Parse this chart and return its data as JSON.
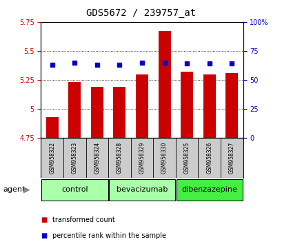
{
  "title": "GDS5672 / 239757_at",
  "samples": [
    "GSM958322",
    "GSM958323",
    "GSM958324",
    "GSM958328",
    "GSM958329",
    "GSM958330",
    "GSM958325",
    "GSM958326",
    "GSM958327"
  ],
  "red_values": [
    4.93,
    5.23,
    5.19,
    5.19,
    5.3,
    5.67,
    5.32,
    5.3,
    5.31
  ],
  "blue_values": [
    63,
    65,
    63,
    63,
    65,
    65,
    64,
    64,
    64
  ],
  "ylim_left": [
    4.75,
    5.75
  ],
  "ylim_right": [
    0,
    100
  ],
  "yticks_left": [
    4.75,
    5.0,
    5.25,
    5.5,
    5.75
  ],
  "yticks_right": [
    0,
    25,
    50,
    75,
    100
  ],
  "ytick_labels_right": [
    "0",
    "25",
    "50",
    "75",
    "100%"
  ],
  "grid_lines": [
    5.0,
    5.25,
    5.5
  ],
  "groups": [
    {
      "label": "control",
      "start": 0,
      "end": 2,
      "color": "#aaffaa"
    },
    {
      "label": "bevacizumab",
      "start": 3,
      "end": 5,
      "color": "#aaffaa"
    },
    {
      "label": "dibenzazepine",
      "start": 6,
      "end": 8,
      "color": "#44ee44"
    }
  ],
  "bar_color": "#cc0000",
  "dot_color": "#0000cc",
  "bar_bottom": 4.75,
  "bar_width": 0.55,
  "agent_label": "agent",
  "legend_items": [
    {
      "label": "transformed count",
      "color": "#cc0000"
    },
    {
      "label": "percentile rank within the sample",
      "color": "#0000cc"
    }
  ],
  "title_fontsize": 10,
  "tick_fontsize": 7,
  "sample_fontsize": 5.5,
  "group_label_fontsize": 8,
  "legend_fontsize": 7,
  "background_color": "#ffffff",
  "plot_bg_color": "#ffffff",
  "sample_bg_color": "#cccccc",
  "left_color": "#cc0000",
  "right_color": "#0000cc"
}
